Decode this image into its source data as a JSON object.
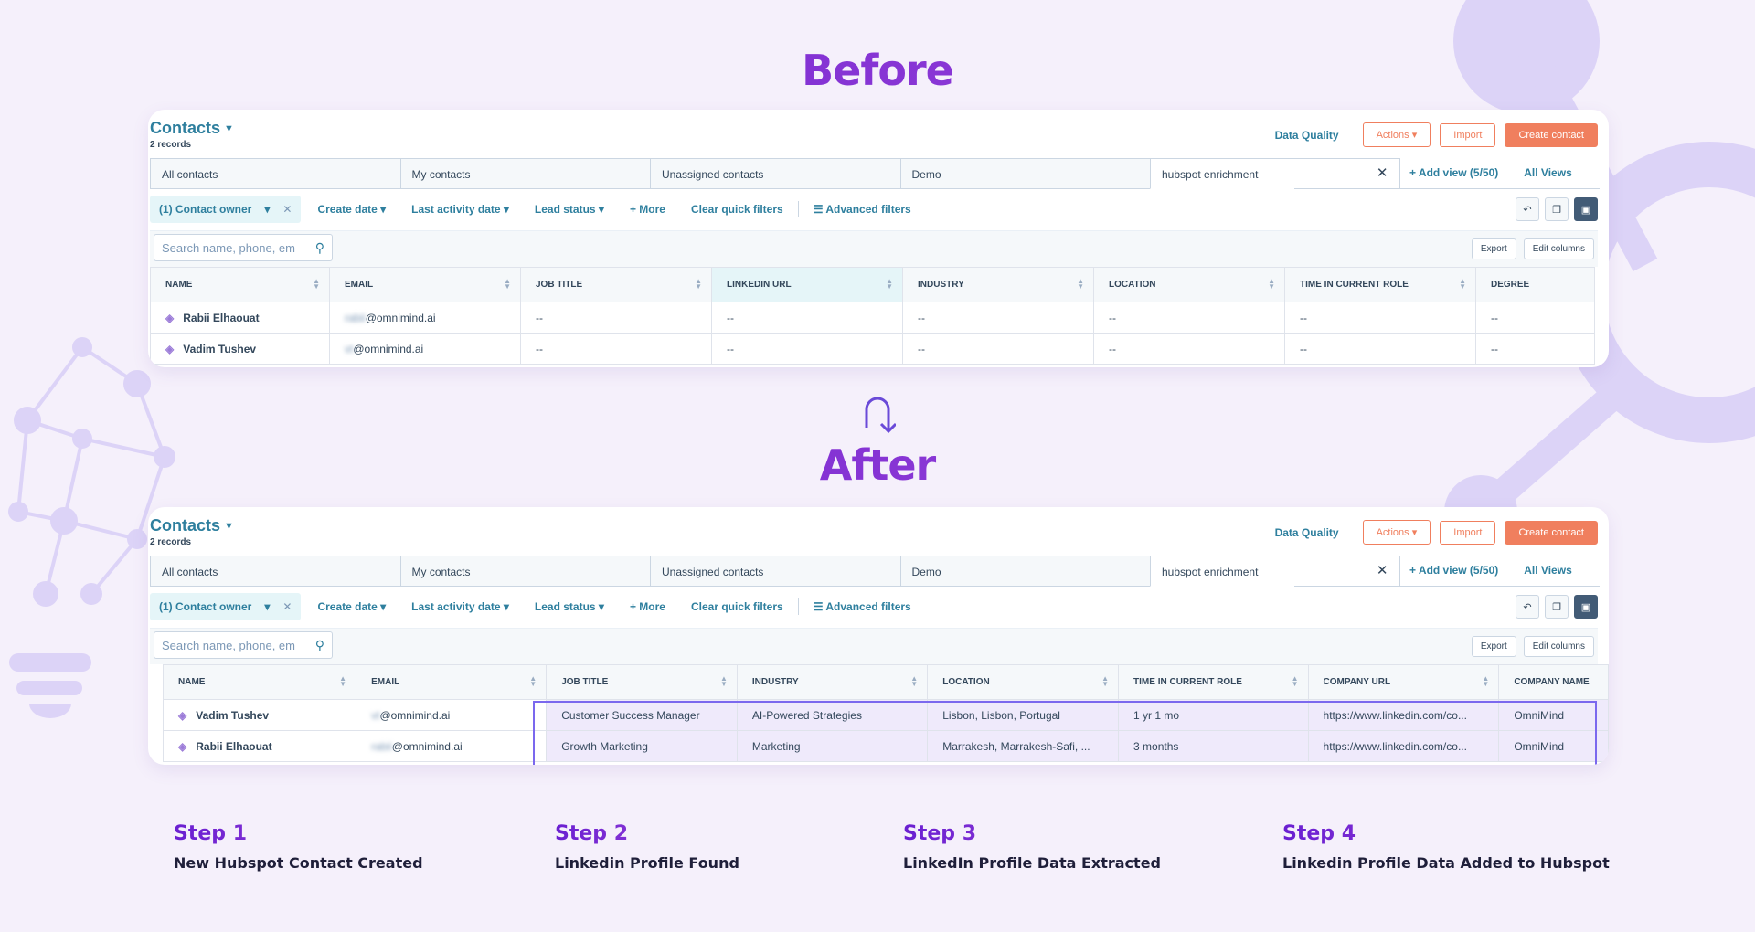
{
  "headings": {
    "before": "Before",
    "after": "After"
  },
  "header": {
    "title": "Contacts",
    "records": "2 records",
    "data_quality": "Data Quality",
    "actions": "Actions",
    "import": "Import",
    "create_contact": "Create contact"
  },
  "tabs": [
    "All contacts",
    "My contacts",
    "Unassigned contacts",
    "Demo",
    "hubspot enrichment"
  ],
  "tabs_right": {
    "add_view": "+ Add view (5/50)",
    "all_views": "All Views"
  },
  "filters": {
    "owner": "(1) Contact owner",
    "create_date": "Create date",
    "last_activity": "Last activity date",
    "lead_status": "Lead status",
    "more": "+ More",
    "clear": "Clear quick filters",
    "advanced": "Advanced filters"
  },
  "toolbar": {
    "search_placeholder": "Search name, phone, em",
    "export": "Export",
    "edit_columns": "Edit columns"
  },
  "before_table": {
    "columns": [
      "NAME",
      "EMAIL",
      "JOB TITLE",
      "LINKEDIN URL",
      "INDUSTRY",
      "LOCATION",
      "TIME IN CURRENT ROLE",
      "DEGREE"
    ],
    "rows": [
      {
        "name": "Rabii Elhaouat",
        "email_prefix": "rabii",
        "email_domain": "@omnimind.ai",
        "cells": [
          "--",
          "--",
          "--",
          "--",
          "--",
          "--"
        ]
      },
      {
        "name": "Vadim Tushev",
        "email_prefix": "vt",
        "email_domain": "@omnimind.ai",
        "cells": [
          "--",
          "--",
          "--",
          "--",
          "--",
          "--"
        ]
      }
    ]
  },
  "after_table": {
    "columns": [
      "NAME",
      "EMAIL",
      "JOB TITLE",
      "INDUSTRY",
      "LOCATION",
      "TIME IN CURRENT ROLE",
      "COMPANY URL",
      "COMPANY NAME"
    ],
    "rows": [
      {
        "name": "Vadim Tushev",
        "email_prefix": "vt",
        "email_domain": "@omnimind.ai",
        "cells": [
          "Customer Success Manager",
          "AI-Powered Strategies",
          "Lisbon, Lisbon, Portugal",
          "1 yr 1 mo",
          "https://www.linkedin.com/co...",
          "OmniMind"
        ]
      },
      {
        "name": "Rabii Elhaouat",
        "email_prefix": "rabii",
        "email_domain": "@omnimind.ai",
        "cells": [
          "Growth Marketing",
          "Marketing",
          "Marrakesh, Marrakesh-Safi, ...",
          "3 months",
          "https://www.linkedin.com/co...",
          "OmniMind"
        ]
      }
    ]
  },
  "steps": [
    {
      "label": "Step 1",
      "desc": "New Hubspot Contact Created"
    },
    {
      "label": "Step 2",
      "desc": "Linkedin Profile Found"
    },
    {
      "label": "Step 3",
      "desc": "LinkedIn Profile Data Extracted"
    },
    {
      "label": "Step 4",
      "desc": "Linkedin Profile Data Added to Hubspot"
    }
  ],
  "colors": {
    "accent": "#2e7f9e",
    "orange": "#f07f5e",
    "purple": "#6a1fd1",
    "highlight": "#7b68ee"
  }
}
